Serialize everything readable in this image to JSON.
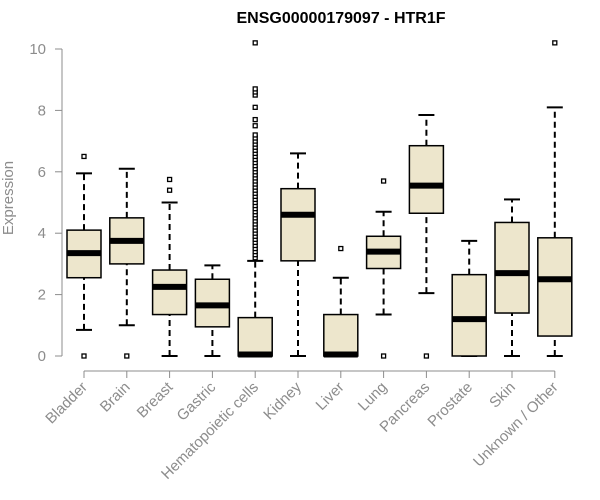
{
  "chart_data": {
    "type": "boxplot",
    "title": "ENSG00000179097 - HTR1F",
    "xlabel": "",
    "ylabel": "Expression",
    "ylim": [
      0,
      10
    ],
    "yticks": [
      0,
      2,
      4,
      6,
      8,
      10
    ],
    "grid": false,
    "legend": "none",
    "box_fill": "#ede6cc",
    "categories": [
      "Bladder",
      "Brain",
      "Breast",
      "Gastric",
      "Hematopoietic cells",
      "Kidney",
      "Liver",
      "Lung",
      "Pancreas",
      "Prostate",
      "Skin",
      "Unknown / Other"
    ],
    "boxes": [
      {
        "category": "Bladder",
        "whisker_low": 0.85,
        "q1": 2.55,
        "median": 3.35,
        "q3": 4.1,
        "whisker_high": 5.95,
        "outliers": [
          0,
          6.5
        ]
      },
      {
        "category": "Brain",
        "whisker_low": 1.0,
        "q1": 3.0,
        "median": 3.75,
        "q3": 4.5,
        "whisker_high": 6.1,
        "outliers": [
          0
        ]
      },
      {
        "category": "Breast",
        "whisker_low": 0,
        "q1": 1.35,
        "median": 2.25,
        "q3": 2.8,
        "whisker_high": 5.0,
        "outliers": [
          5.4,
          5.75
        ]
      },
      {
        "category": "Gastric",
        "whisker_low": 0,
        "q1": 0.95,
        "median": 1.65,
        "q3": 2.5,
        "whisker_high": 2.95,
        "outliers": []
      },
      {
        "category": "Hematopoietic cells",
        "whisker_low": 0,
        "q1": 0,
        "median": 0.05,
        "q3": 1.25,
        "whisker_high": 3.1,
        "outliers": [
          3.2,
          3.3,
          3.4,
          3.5,
          3.6,
          3.7,
          3.8,
          3.9,
          4.0,
          4.1,
          4.2,
          4.3,
          4.4,
          4.5,
          4.6,
          4.7,
          4.8,
          4.9,
          5.0,
          5.1,
          5.2,
          5.3,
          5.4,
          5.5,
          5.6,
          5.7,
          5.8,
          5.9,
          6.0,
          6.1,
          6.2,
          6.3,
          6.4,
          6.5,
          6.6,
          6.7,
          6.8,
          6.9,
          7.0,
          7.1,
          7.2,
          7.5,
          7.7,
          8.1,
          8.5,
          8.6,
          8.7,
          10.2
        ]
      },
      {
        "category": "Kidney",
        "whisker_low": 0,
        "q1": 3.1,
        "median": 4.6,
        "q3": 5.45,
        "whisker_high": 6.6,
        "outliers": []
      },
      {
        "category": "Liver",
        "whisker_low": 0,
        "q1": 0,
        "median": 0.05,
        "q3": 1.35,
        "whisker_high": 2.55,
        "outliers": [
          3.5
        ]
      },
      {
        "category": "Lung",
        "whisker_low": 1.35,
        "q1": 2.85,
        "median": 3.4,
        "q3": 3.9,
        "whisker_high": 4.7,
        "outliers": [
          0,
          5.7
        ]
      },
      {
        "category": "Pancreas",
        "whisker_low": 2.05,
        "q1": 4.65,
        "median": 5.55,
        "q3": 6.85,
        "whisker_high": 7.85,
        "outliers": [
          0
        ]
      },
      {
        "category": "Prostate",
        "whisker_low": 0,
        "q1": 0,
        "median": 1.2,
        "q3": 2.65,
        "whisker_high": 3.75,
        "outliers": []
      },
      {
        "category": "Skin",
        "whisker_low": 0,
        "q1": 1.4,
        "median": 2.7,
        "q3": 4.35,
        "whisker_high": 5.1,
        "outliers": []
      },
      {
        "category": "Unknown / Other",
        "whisker_low": 0,
        "q1": 0.65,
        "median": 2.5,
        "q3": 3.85,
        "whisker_high": 8.1,
        "outliers": [
          10.2
        ]
      }
    ]
  }
}
